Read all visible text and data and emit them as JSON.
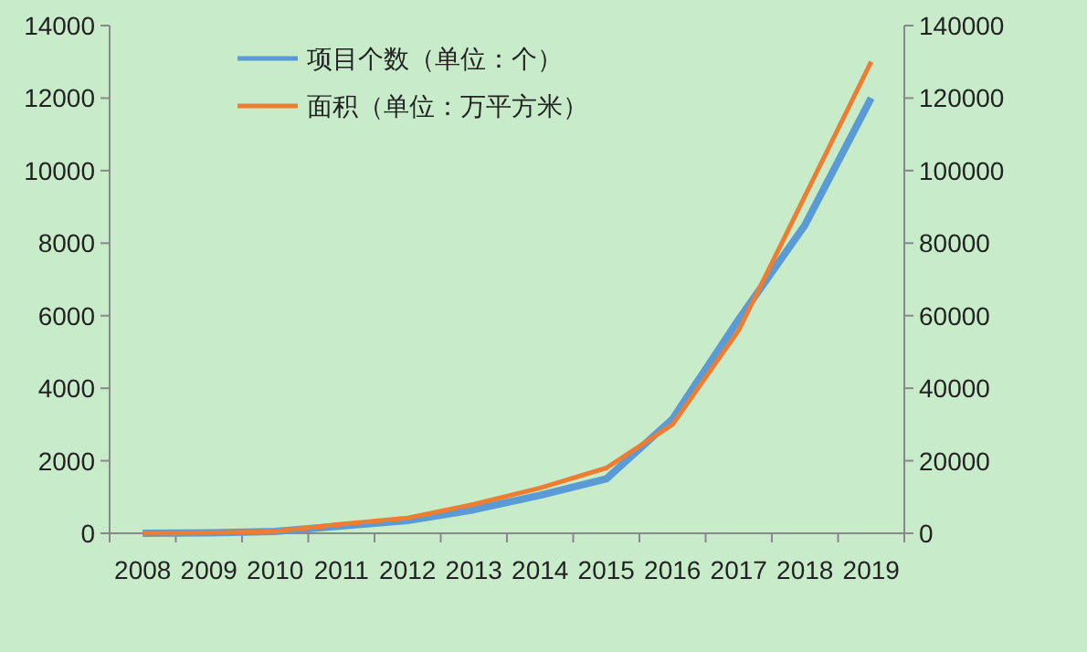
{
  "chart_data": {
    "type": "line",
    "categories": [
      "2008",
      "2009",
      "2010",
      "2011",
      "2012",
      "2013",
      "2014",
      "2015",
      "2016",
      "2017",
      "2018",
      "2019"
    ],
    "series": [
      {
        "name": "项目个数（单位：个）",
        "color": "#5b9bd5",
        "values": [
          0,
          10,
          50,
          200,
          350,
          650,
          1050,
          1500,
          3150,
          5900,
          8500,
          12000
        ]
      },
      {
        "name": "面积（单位：万平方米）",
        "color": "#ed7d31",
        "axis": "y2",
        "values": [
          0,
          100,
          500,
          2500,
          4200,
          8000,
          12500,
          18000,
          30000,
          56000,
          93000,
          130000
        ]
      }
    ],
    "ylim": [
      0,
      14000
    ],
    "yticks": [
      0,
      2000,
      4000,
      6000,
      8000,
      10000,
      12000,
      14000
    ],
    "y2lim": [
      0,
      140000
    ],
    "y2ticks": [
      0,
      20000,
      40000,
      60000,
      80000,
      100000,
      120000,
      140000
    ],
    "grid": false,
    "legend": "top",
    "marker": "none",
    "line_style": "solid"
  }
}
